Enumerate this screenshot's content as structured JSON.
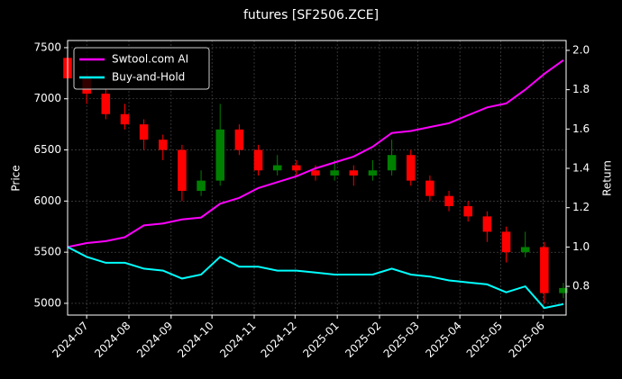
{
  "chart_data": {
    "type": "candlestick",
    "title": "futures [SF2506.ZCE]",
    "y_label": "Price",
    "y2_label": "Return",
    "x": [
      "2024-06-17",
      "2024-07-01",
      "2024-07-15",
      "2024-07-29",
      "2024-08-12",
      "2024-08-26",
      "2024-09-09",
      "2024-09-23",
      "2024-10-07",
      "2024-10-21",
      "2024-11-04",
      "2024-11-18",
      "2024-12-02",
      "2024-12-16",
      "2024-12-30",
      "2025-01-13",
      "2025-01-27",
      "2025-02-10",
      "2025-02-24",
      "2025-03-10",
      "2025-03-24",
      "2025-04-07",
      "2025-04-21",
      "2025-05-05",
      "2025-05-19",
      "2025-06-02",
      "2025-06-16"
    ],
    "open": [
      7400,
      7200,
      7050,
      6850,
      6750,
      6600,
      6500,
      6100,
      6200,
      6700,
      6500,
      6300,
      6350,
      6300,
      6250,
      6300,
      6250,
      6300,
      6450,
      6200,
      6050,
      5950,
      5850,
      5700,
      5500,
      5550,
      5100
    ],
    "high": [
      7450,
      7250,
      7100,
      6950,
      6800,
      6650,
      6550,
      6300,
      6950,
      6750,
      6550,
      6450,
      6400,
      6350,
      6400,
      6350,
      6400,
      6600,
      6500,
      6250,
      6100,
      6000,
      5900,
      5750,
      5700,
      5600,
      5200
    ],
    "low": [
      7100,
      6950,
      6800,
      6700,
      6500,
      6400,
      6000,
      6050,
      6150,
      6450,
      6250,
      6250,
      6250,
      6200,
      6200,
      6150,
      6200,
      6250,
      6150,
      6000,
      5900,
      5800,
      5600,
      5400,
      5450,
      5000,
      5050
    ],
    "close": [
      7200,
      7050,
      6850,
      6750,
      6600,
      6500,
      6100,
      6200,
      6700,
      6500,
      6300,
      6350,
      6300,
      6250,
      6300,
      6250,
      6300,
      6450,
      6200,
      6050,
      5950,
      5850,
      5700,
      5500,
      5550,
      5100,
      5150
    ],
    "up_color": "#008000",
    "down_color": "#ff0000",
    "series": [
      {
        "name": "Swtool.com AI",
        "color": "#ff00ff",
        "axis": "y2",
        "values": [
          1.0,
          1.02,
          1.03,
          1.05,
          1.11,
          1.12,
          1.14,
          1.15,
          1.22,
          1.25,
          1.3,
          1.33,
          1.36,
          1.4,
          1.43,
          1.46,
          1.51,
          1.58,
          1.59,
          1.61,
          1.63,
          1.67,
          1.71,
          1.73,
          1.8,
          1.88,
          1.95
        ]
      },
      {
        "name": "Buy-and-Hold",
        "color": "#00ffff",
        "axis": "y2",
        "values": [
          1.0,
          0.95,
          0.92,
          0.92,
          0.89,
          0.88,
          0.84,
          0.86,
          0.95,
          0.9,
          0.9,
          0.88,
          0.88,
          0.87,
          0.86,
          0.86,
          0.86,
          0.89,
          0.86,
          0.85,
          0.83,
          0.82,
          0.81,
          0.77,
          0.8,
          0.69,
          0.71
        ]
      }
    ],
    "xlim": [
      "2024-06-17",
      "2025-06-18"
    ],
    "xticks": [
      {
        "value": "2024-07-01",
        "label": "2024-07"
      },
      {
        "value": "2024-08-01",
        "label": "2024-08"
      },
      {
        "value": "2024-09-01",
        "label": "2024-09"
      },
      {
        "value": "2024-10-01",
        "label": "2024-10"
      },
      {
        "value": "2024-11-01",
        "label": "2024-11"
      },
      {
        "value": "2024-12-01",
        "label": "2024-12"
      },
      {
        "value": "2025-01-01",
        "label": "2025-01"
      },
      {
        "value": "2025-02-01",
        "label": "2025-02"
      },
      {
        "value": "2025-03-01",
        "label": "2025-03"
      },
      {
        "value": "2025-04-01",
        "label": "2025-04"
      },
      {
        "value": "2025-05-01",
        "label": "2025-05"
      },
      {
        "value": "2025-06-01",
        "label": "2025-06"
      }
    ],
    "ylim": [
      4885,
      7570
    ],
    "yticks": [
      5000,
      5500,
      6000,
      6500,
      7000,
      7500
    ],
    "y2lim": [
      0.654,
      2.05
    ],
    "y2ticks": [
      0.8,
      {
        "value": 1,
        "label": "1.0"
      },
      1.2,
      1.4,
      1.6,
      1.8,
      {
        "value": 2,
        "label": "2.0"
      }
    ],
    "grid": true,
    "legend": "upper left"
  }
}
